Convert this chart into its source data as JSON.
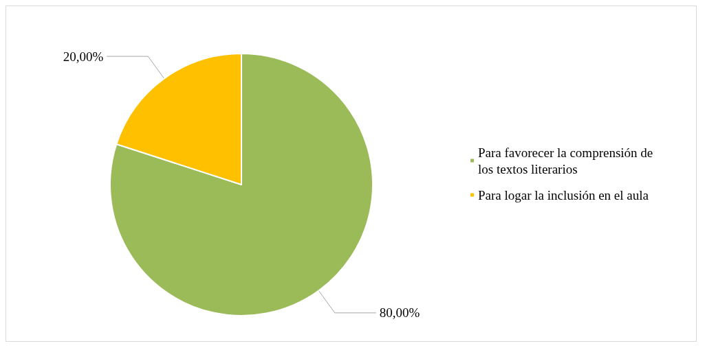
{
  "chart_data": {
    "type": "pie",
    "categories": [
      "Para favorecer la comprensión de los textos literarios",
      "Para logar la inclusión en el aula"
    ],
    "values": [
      80,
      20
    ],
    "colors": [
      "#9bbb59",
      "#ffc000"
    ],
    "value_labels": [
      "80,00%",
      "20,00%"
    ],
    "legend": "right"
  }
}
